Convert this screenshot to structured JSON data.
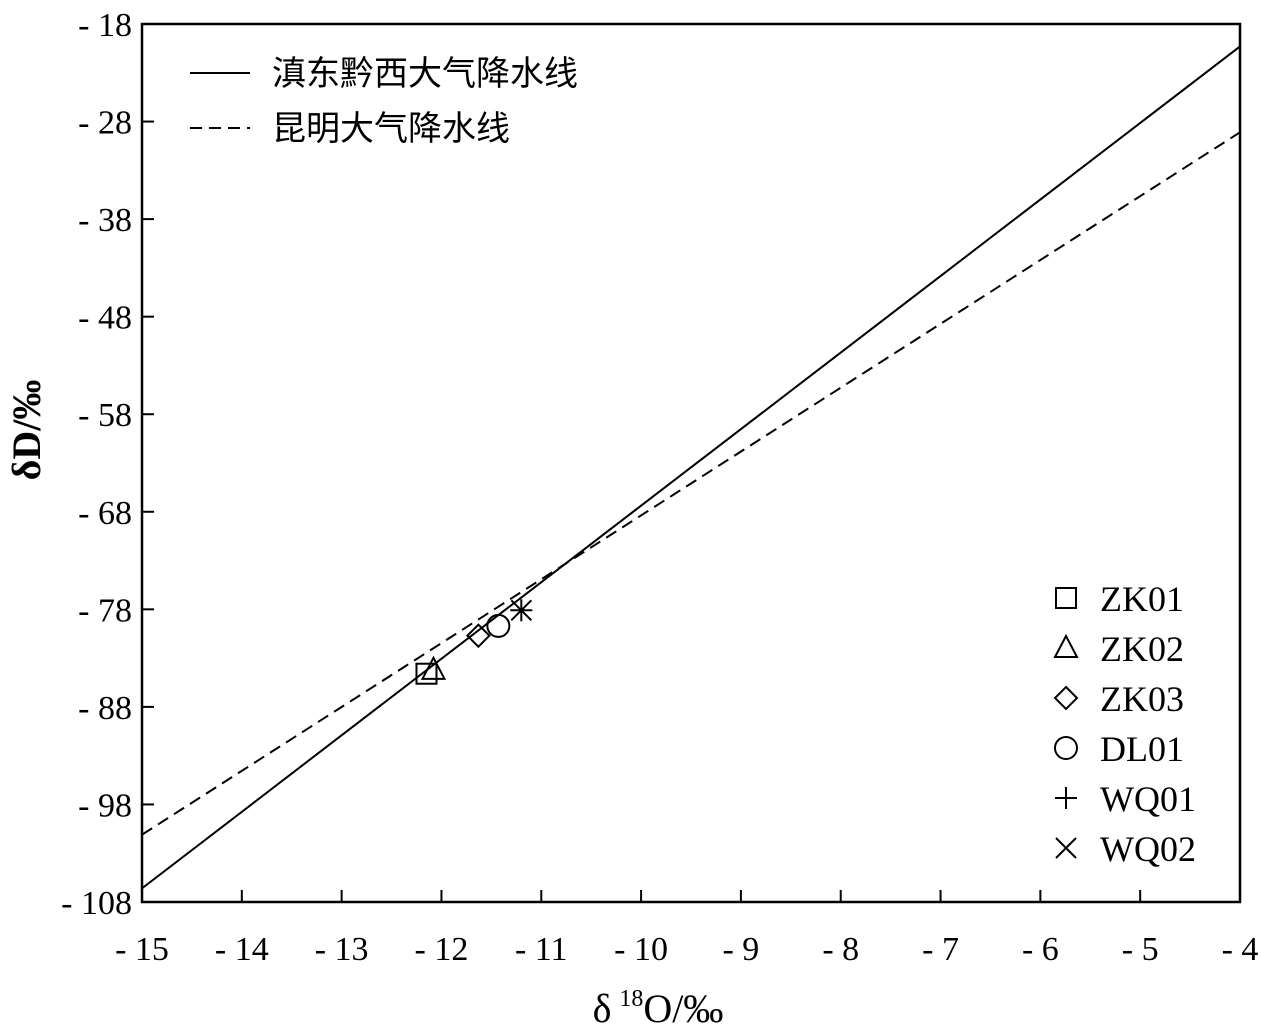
{
  "chart_data": {
    "type": "scatter",
    "xlabel": {
      "main": "δ",
      "sup": "18",
      "rest": "O/‰"
    },
    "ylabel": "δD/‰",
    "xlim": [
      -15,
      -4
    ],
    "ylim": [
      -108,
      -18
    ],
    "xticks": [
      -15,
      -14,
      -13,
      -12,
      -11,
      -10,
      -9,
      -8,
      -7,
      -6,
      -5,
      -4
    ],
    "yticks": [
      -18,
      -28,
      -38,
      -48,
      -58,
      -68,
      -78,
      -88,
      -98,
      -108
    ],
    "xtick_labels": [
      "- 15",
      "- 14",
      "- 13",
      "- 12",
      "- 11",
      "- 10",
      "- 9",
      "- 8",
      "- 7",
      "- 6",
      "- 5",
      "- 4"
    ],
    "ytick_labels": [
      "- 18",
      "- 28",
      "- 38",
      "- 48",
      "- 58",
      "- 68",
      "- 78",
      "- 88",
      "- 98",
      "- 108"
    ],
    "lines": [
      {
        "name": "滇东黔西大气降水线",
        "style": "solid",
        "points": [
          [
            -15,
            -106.6
          ],
          [
            -4,
            -20.3
          ]
        ]
      },
      {
        "name": "昆明大气降水线",
        "style": "dashed",
        "points": [
          [
            -15,
            -101.1
          ],
          [
            -4,
            -29.1
          ]
        ]
      }
    ],
    "series": [
      {
        "name": "ZK01",
        "marker": "square",
        "points": [
          [
            -12.15,
            -84.6
          ]
        ]
      },
      {
        "name": "ZK02",
        "marker": "triangle",
        "points": [
          [
            -12.08,
            -84.2
          ]
        ]
      },
      {
        "name": "ZK03",
        "marker": "diamond",
        "points": [
          [
            -11.63,
            -80.7
          ]
        ]
      },
      {
        "name": "DL01",
        "marker": "circle",
        "points": [
          [
            -11.43,
            -79.7
          ]
        ]
      },
      {
        "name": "WQ01",
        "marker": "plus",
        "points": [
          [
            -11.2,
            -78.1
          ]
        ]
      },
      {
        "name": "WQ02",
        "marker": "cross",
        "points": [
          [
            -11.2,
            -78.1
          ]
        ]
      }
    ],
    "grid": false,
    "line_legend_position": "top-left",
    "marker_legend_position": "bottom-right"
  }
}
